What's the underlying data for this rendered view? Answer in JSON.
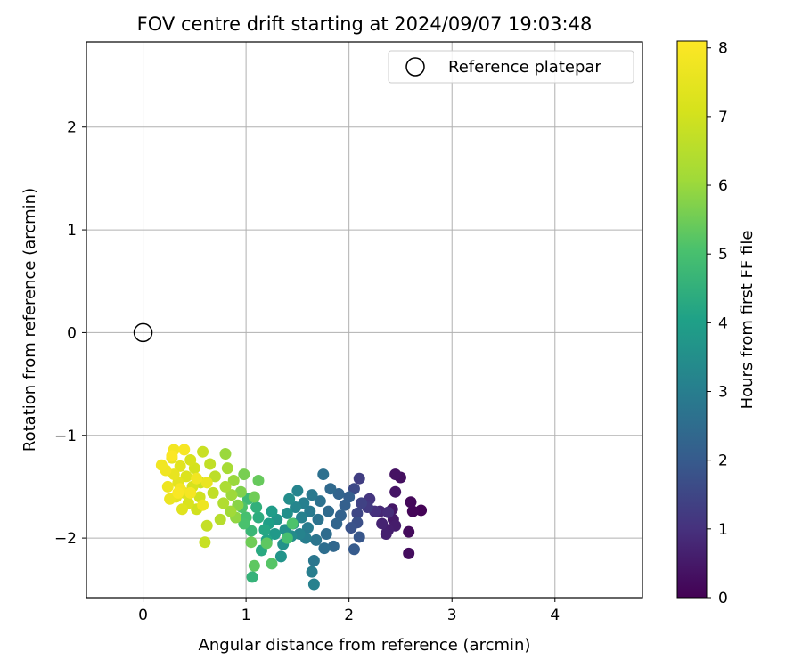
{
  "chart_data": {
    "type": "scatter",
    "title": "FOV centre drift starting at 2024/09/07 19:03:48",
    "xlabel": "Angular distance from reference (arcmin)",
    "ylabel": "Rotation from reference (arcmin)",
    "xlim": [
      -0.55,
      4.85
    ],
    "ylim": [
      -2.58,
      2.83
    ],
    "xticks": [
      0,
      1,
      2,
      3,
      4
    ],
    "yticks": [
      -2,
      -1,
      0,
      1,
      2
    ],
    "grid": true,
    "legend": {
      "placement": "upper right",
      "entries": [
        "Reference platepar"
      ]
    },
    "reference_point": {
      "x": 0,
      "y": 0,
      "label": "Reference platepar",
      "marker": "open circle"
    },
    "colorbar": {
      "label": "Hours from first FF file",
      "min": 0,
      "max": 8.1,
      "ticks": [
        0,
        1,
        2,
        3,
        4,
        5,
        6,
        7,
        8
      ],
      "colormap": "viridis"
    },
    "points": [
      [
        2.7,
        -1.73,
        0.05
      ],
      [
        2.62,
        -1.74,
        0.1
      ],
      [
        2.6,
        -1.65,
        0.15
      ],
      [
        2.58,
        -1.94,
        0.2
      ],
      [
        2.58,
        -2.15,
        0.25
      ],
      [
        2.5,
        -1.41,
        0.3
      ],
      [
        2.45,
        -1.38,
        0.35
      ],
      [
        2.45,
        -1.55,
        0.4
      ],
      [
        2.42,
        -1.72,
        0.45
      ],
      [
        2.43,
        -1.82,
        0.5
      ],
      [
        2.45,
        -1.88,
        0.55
      ],
      [
        2.38,
        -1.92,
        0.6
      ],
      [
        2.36,
        -1.96,
        0.65
      ],
      [
        2.32,
        -1.86,
        0.7
      ],
      [
        2.3,
        -1.74,
        0.8
      ],
      [
        2.38,
        -1.75,
        0.9
      ],
      [
        2.25,
        -1.74,
        1.0
      ],
      [
        2.2,
        -1.62,
        1.1
      ],
      [
        2.18,
        -1.7,
        1.2
      ],
      [
        2.1,
        -1.42,
        1.3
      ],
      [
        2.12,
        -1.66,
        1.4
      ],
      [
        2.08,
        -1.76,
        1.5
      ],
      [
        2.05,
        -1.52,
        1.6
      ],
      [
        2.08,
        -1.85,
        1.7
      ],
      [
        2.02,
        -1.9,
        1.8
      ],
      [
        2.1,
        -1.99,
        1.9
      ],
      [
        2.05,
        -2.11,
        2.0
      ],
      [
        2.0,
        -1.6,
        2.1
      ],
      [
        1.96,
        -1.68,
        2.15
      ],
      [
        1.92,
        -1.78,
        2.2
      ],
      [
        1.9,
        -1.57,
        2.25
      ],
      [
        1.88,
        -1.86,
        2.3
      ],
      [
        1.85,
        -2.08,
        2.35
      ],
      [
        1.82,
        -1.52,
        2.4
      ],
      [
        1.8,
        -1.74,
        2.45
      ],
      [
        1.78,
        -1.96,
        2.5
      ],
      [
        1.76,
        -2.1,
        2.55
      ],
      [
        1.75,
        -1.38,
        2.6
      ],
      [
        1.72,
        -1.64,
        2.65
      ],
      [
        1.7,
        -1.82,
        2.7
      ],
      [
        1.68,
        -2.02,
        2.75
      ],
      [
        1.66,
        -2.22,
        2.8
      ],
      [
        1.64,
        -1.58,
        2.85
      ],
      [
        1.62,
        -1.74,
        2.9
      ],
      [
        1.6,
        -1.9,
        2.95
      ],
      [
        1.58,
        -2.0,
        3.0
      ],
      [
        1.56,
        -1.66,
        3.05
      ],
      [
        1.54,
        -1.8,
        3.1
      ],
      [
        1.52,
        -1.96,
        3.15
      ],
      [
        1.5,
        -1.54,
        3.2
      ],
      [
        1.48,
        -1.7,
        3.25
      ],
      [
        1.66,
        -2.45,
        3.1
      ],
      [
        1.64,
        -2.33,
        3.0
      ],
      [
        1.46,
        -1.86,
        3.35
      ],
      [
        1.44,
        -1.98,
        3.4
      ],
      [
        1.42,
        -1.62,
        3.45
      ],
      [
        1.4,
        -1.76,
        3.5
      ],
      [
        1.38,
        -1.92,
        3.55
      ],
      [
        1.36,
        -2.06,
        3.6
      ],
      [
        1.34,
        -2.18,
        3.65
      ],
      [
        1.3,
        -1.82,
        3.7
      ],
      [
        1.28,
        -1.96,
        3.8
      ],
      [
        1.25,
        -1.74,
        3.9
      ],
      [
        1.22,
        -1.86,
        4.0
      ],
      [
        1.2,
        -2.02,
        4.1
      ],
      [
        1.18,
        -1.92,
        4.2
      ],
      [
        1.15,
        -2.12,
        4.3
      ],
      [
        1.12,
        -1.8,
        4.4
      ],
      [
        1.1,
        -1.7,
        4.5
      ],
      [
        1.06,
        -2.38,
        4.6
      ],
      [
        1.05,
        -1.93,
        4.7
      ],
      [
        1.02,
        -1.62,
        4.8
      ],
      [
        1.0,
        -1.8,
        5.0
      ],
      [
        0.98,
        -1.86,
        5.05
      ],
      [
        0.96,
        -1.7,
        5.1
      ],
      [
        1.45,
        -1.86,
        5.1
      ],
      [
        1.4,
        -2.0,
        5.0
      ],
      [
        1.25,
        -2.25,
        5.2
      ],
      [
        1.2,
        -2.05,
        5.3
      ],
      [
        1.08,
        -2.27,
        5.3
      ],
      [
        1.12,
        -1.44,
        5.4
      ],
      [
        1.08,
        -1.6,
        5.5
      ],
      [
        1.05,
        -2.04,
        5.5
      ],
      [
        0.98,
        -1.38,
        5.6
      ],
      [
        0.95,
        -1.55,
        5.7
      ],
      [
        0.92,
        -1.68,
        5.8
      ],
      [
        0.9,
        -1.8,
        5.9
      ],
      [
        0.88,
        -1.44,
        6.0
      ],
      [
        0.86,
        -1.58,
        6.05
      ],
      [
        0.85,
        -1.74,
        6.1
      ],
      [
        0.8,
        -1.18,
        6.0
      ],
      [
        0.82,
        -1.32,
        6.2
      ],
      [
        0.8,
        -1.5,
        6.3
      ],
      [
        0.78,
        -1.66,
        6.4
      ],
      [
        0.75,
        -1.82,
        6.5
      ],
      [
        0.7,
        -1.4,
        6.6
      ],
      [
        0.68,
        -1.56,
        6.7
      ],
      [
        0.65,
        -1.28,
        6.7
      ],
      [
        0.62,
        -1.88,
        6.75
      ],
      [
        0.6,
        -2.04,
        6.8
      ],
      [
        0.58,
        -1.16,
        6.85
      ],
      [
        0.56,
        -1.46,
        6.9
      ],
      [
        0.55,
        -1.6,
        6.95
      ],
      [
        0.52,
        -1.72,
        7.0
      ],
      [
        0.5,
        -1.32,
        7.05
      ],
      [
        0.48,
        -1.5,
        7.1
      ],
      [
        0.46,
        -1.24,
        7.15
      ],
      [
        0.44,
        -1.66,
        7.2
      ],
      [
        0.42,
        -1.4,
        7.25
      ],
      [
        0.4,
        -1.56,
        7.3
      ],
      [
        0.38,
        -1.72,
        7.35
      ],
      [
        0.36,
        -1.3,
        7.4
      ],
      [
        0.34,
        -1.46,
        7.45
      ],
      [
        0.32,
        -1.6,
        7.5
      ],
      [
        0.3,
        -1.38,
        7.55
      ],
      [
        0.28,
        -1.22,
        7.6
      ],
      [
        0.26,
        -1.62,
        7.65
      ],
      [
        0.24,
        -1.5,
        7.7
      ],
      [
        0.22,
        -1.34,
        7.75
      ],
      [
        0.18,
        -1.29,
        7.8
      ],
      [
        0.3,
        -1.14,
        7.85
      ],
      [
        0.36,
        -1.52,
        7.9
      ],
      [
        0.4,
        -1.14,
        7.95
      ],
      [
        0.34,
        -1.56,
        8.0
      ],
      [
        0.28,
        -1.2,
        8.05
      ],
      [
        0.62,
        -1.46,
        7.6
      ],
      [
        0.58,
        -1.68,
        7.7
      ],
      [
        0.52,
        -1.42,
        7.8
      ],
      [
        0.46,
        -1.56,
        7.9
      ]
    ]
  }
}
